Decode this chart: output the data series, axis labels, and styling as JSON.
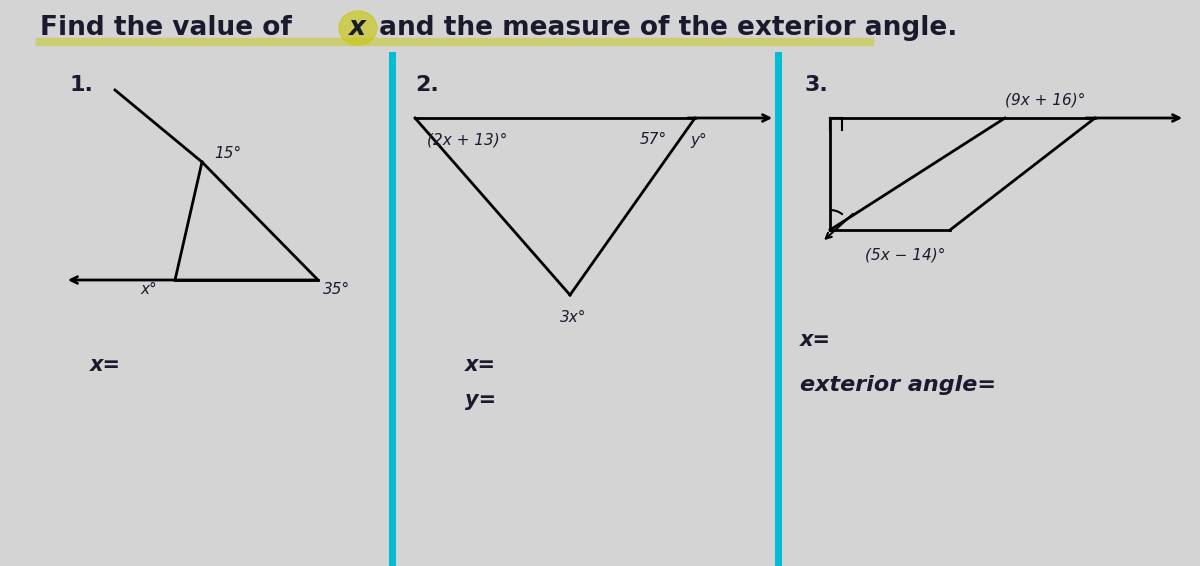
{
  "title_part1": "Find the value of ",
  "title_x": "x",
  "title_part2": " and the measure of the exterior angle.",
  "bg_color": "#d4d4d4",
  "text_color": "#1a1a2e",
  "cyan_color": "#00bcd4",
  "highlight_color": "#d4d400",
  "problem1": {
    "number": "1.",
    "angle1_label": "15°",
    "angle2_label": "x°",
    "angle3_label": "35°",
    "answer_label": "x="
  },
  "problem2": {
    "number": "2.",
    "angle1_label": "(2x + 13)°",
    "angle2_label": "57°",
    "angle3_label": "y°",
    "angle4_label": "3x°",
    "answer_x": "x=",
    "answer_y": "y="
  },
  "problem3": {
    "number": "3.",
    "angle1_label": "(9x + 16)°",
    "angle2_label": "(5x − 14)°",
    "answer_x": "x=",
    "answer_ext": "exterior angle="
  }
}
